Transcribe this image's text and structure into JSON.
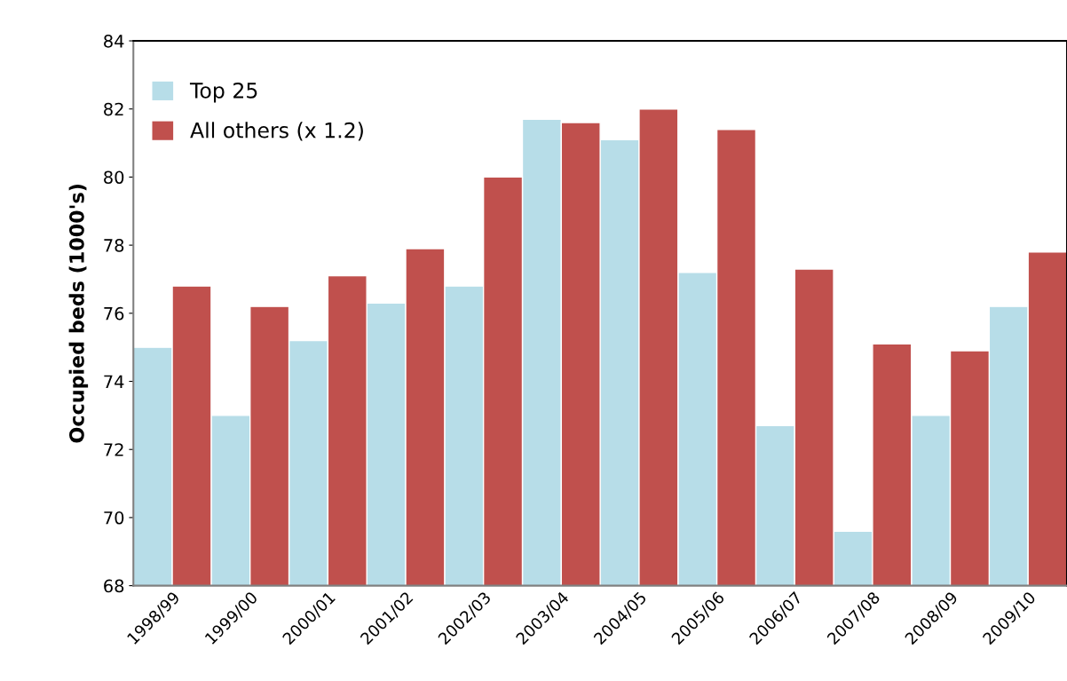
{
  "chart_data": {
    "type": "bar",
    "ylabel": "Occupied beds (1000's)",
    "categories": [
      "1998/99",
      "1999/00",
      "2000/01",
      "2001/02",
      "2002/03",
      "2003/04",
      "2004/05",
      "2005/06",
      "2006/07",
      "2007/08",
      "2008/09",
      "2009/10"
    ],
    "series": [
      {
        "name": "Top 25",
        "color": "#b7dde8",
        "values": [
          75.0,
          73.0,
          75.2,
          76.3,
          76.8,
          81.7,
          81.1,
          77.2,
          72.7,
          69.6,
          73.0,
          76.2
        ]
      },
      {
        "name": "All others (x 1.2)",
        "color": "#c0504d",
        "values": [
          76.8,
          76.2,
          77.1,
          77.9,
          80.0,
          81.6,
          82.0,
          81.4,
          77.3,
          75.1,
          74.9,
          77.8
        ]
      }
    ],
    "ylim": [
      68,
      84
    ],
    "yticks": [
      68,
      70,
      72,
      74,
      76,
      78,
      80,
      82,
      84
    ],
    "grid": false,
    "legend": "top left"
  }
}
